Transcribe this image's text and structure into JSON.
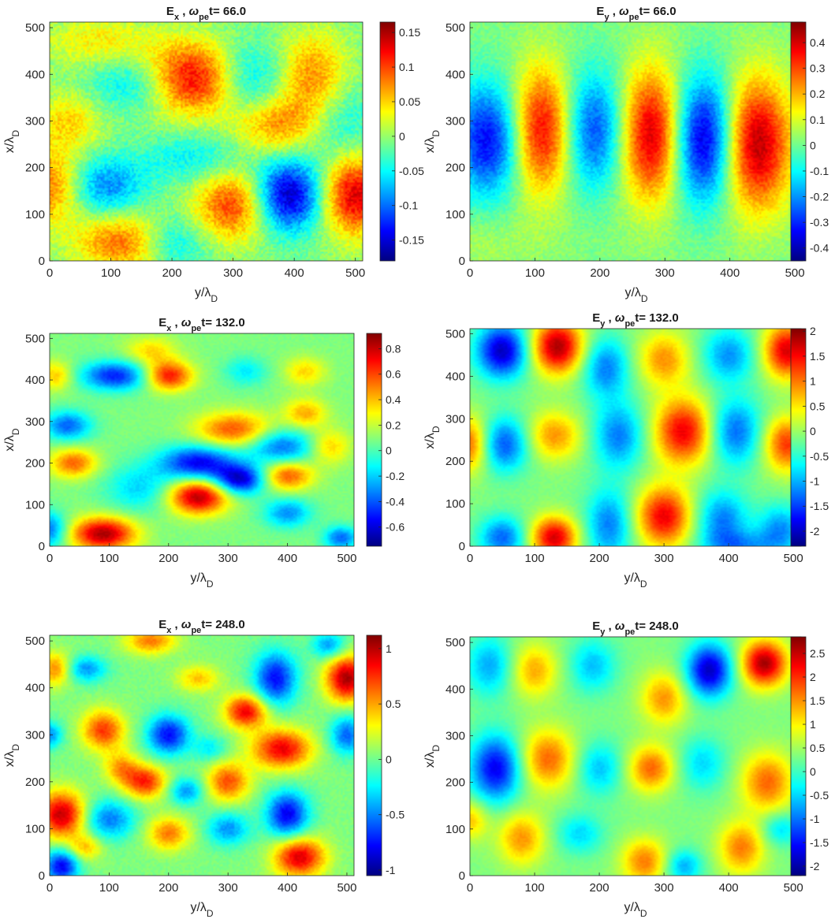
{
  "figure": {
    "colormap": "jet"
  },
  "chart_data": [
    {
      "type": "heatmap",
      "field": "E",
      "field_sub": "x",
      "omega": "ω",
      "omega_sub": "pe",
      "time_label": "t= 66.0",
      "xlabel": "y/λ",
      "xlabel_sub": "D",
      "ylabel": "x/λ",
      "ylabel_sub": "D",
      "xlim": [
        0,
        512
      ],
      "ylim": [
        0,
        512
      ],
      "x_ticks": [
        "0",
        "100",
        "200",
        "300",
        "400",
        "500"
      ],
      "y_ticks": [
        "0",
        "100",
        "200",
        "300",
        "400",
        "500"
      ],
      "clim": [
        -0.18,
        0.165
      ],
      "colorbar_ticks": [
        "-0.15",
        "-0.1",
        "-0.05",
        "0",
        "0.05",
        "0.1",
        "0.15"
      ],
      "features": [
        [
          230,
          390,
          60,
          55,
          1
        ],
        [
          150,
          380,
          55,
          45,
          -0.5
        ],
        [
          390,
          140,
          40,
          55,
          -1
        ],
        [
          500,
          140,
          40,
          60,
          0.9
        ],
        [
          300,
          120,
          45,
          55,
          0.7
        ],
        [
          120,
          40,
          55,
          45,
          0.6
        ],
        [
          0,
          160,
          40,
          55,
          0.6
        ],
        [
          90,
          160,
          45,
          45,
          -0.55
        ],
        [
          320,
          390,
          45,
          55,
          -0.5
        ],
        [
          430,
          390,
          40,
          70,
          0.55
        ],
        [
          370,
          290,
          50,
          45,
          0.5
        ],
        [
          240,
          220,
          60,
          40,
          -0.3
        ],
        [
          200,
          40,
          40,
          40,
          -0.4
        ],
        [
          30,
          300,
          40,
          45,
          0.35
        ],
        [
          470,
          300,
          45,
          60,
          -0.3
        ],
        [
          80,
          470,
          60,
          40,
          0.3
        ]
      ],
      "noise": 0.22
    },
    {
      "type": "heatmap",
      "field": "E",
      "field_sub": "y",
      "omega": "ω",
      "omega_sub": "pe",
      "time_label": "t= 66.0",
      "xlabel": "y/λ",
      "xlabel_sub": "D",
      "ylabel": "x/λ",
      "ylabel_sub": "D",
      "xlim": [
        0,
        512
      ],
      "ylim": [
        0,
        512
      ],
      "x_ticks": [
        "0",
        "100",
        "200",
        "300",
        "400",
        "500"
      ],
      "y_ticks": [
        "0",
        "100",
        "200",
        "300",
        "400",
        "500"
      ],
      "clim": [
        -0.45,
        0.48
      ],
      "colorbar_ticks": [
        "-0.4",
        "-0.3",
        "-0.2",
        "-0.1",
        "0",
        "0.1",
        "0.2",
        "0.3",
        "0.4"
      ],
      "features": [
        [
          30,
          260,
          38,
          85,
          -0.85
        ],
        [
          110,
          280,
          35,
          95,
          0.9
        ],
        [
          190,
          280,
          35,
          90,
          -0.7
        ],
        [
          280,
          270,
          35,
          100,
          0.95
        ],
        [
          360,
          260,
          35,
          95,
          -1
        ],
        [
          440,
          250,
          38,
          100,
          1
        ],
        [
          0,
          40,
          80,
          40,
          0.1
        ]
      ],
      "noise": 0.15
    },
    {
      "type": "heatmap",
      "field": "E",
      "field_sub": "x",
      "omega": "ω",
      "omega_sub": "pe",
      "time_label": "t= 132.0",
      "xlabel": "y/λ",
      "xlabel_sub": "D",
      "ylabel": "x/λ",
      "ylabel_sub": "D",
      "xlim": [
        0,
        512
      ],
      "ylim": [
        0,
        512
      ],
      "x_ticks": [
        "0",
        "100",
        "200",
        "300",
        "400",
        "500"
      ],
      "y_ticks": [
        "0",
        "100",
        "200",
        "300",
        "400",
        "500"
      ],
      "clim": [
        -0.75,
        0.92
      ],
      "colorbar_ticks": [
        "-0.6",
        "-0.4",
        "-0.2",
        "0",
        "0.2",
        "0.4",
        "0.6",
        "0.8"
      ],
      "features": [
        [
          90,
          30,
          38,
          28,
          1
        ],
        [
          250,
          120,
          35,
          30,
          1
        ],
        [
          320,
          160,
          30,
          25,
          -0.9
        ],
        [
          250,
          200,
          45,
          30,
          -0.85
        ],
        [
          110,
          410,
          40,
          25,
          -0.75
        ],
        [
          200,
          410,
          28,
          25,
          0.8
        ],
        [
          30,
          290,
          28,
          25,
          -0.6
        ],
        [
          40,
          200,
          28,
          25,
          0.6
        ],
        [
          310,
          280,
          45,
          30,
          0.65
        ],
        [
          390,
          240,
          40,
          30,
          -0.6
        ],
        [
          400,
          170,
          30,
          25,
          0.65
        ],
        [
          400,
          80,
          28,
          25,
          -0.5
        ],
        [
          10,
          410,
          20,
          25,
          0.4
        ],
        [
          430,
          320,
          25,
          25,
          0.45
        ],
        [
          170,
          470,
          30,
          25,
          0.35
        ],
        [
          470,
          240,
          25,
          30,
          0.4
        ],
        [
          150,
          140,
          40,
          40,
          -0.35
        ],
        [
          430,
          420,
          25,
          25,
          0.35
        ],
        [
          330,
          420,
          25,
          25,
          -0.3
        ],
        [
          0,
          40,
          20,
          30,
          -0.6
        ],
        [
          490,
          20,
          20,
          20,
          -0.6
        ]
      ],
      "noise": 0.07
    },
    {
      "type": "heatmap",
      "field": "E",
      "field_sub": "y",
      "omega": "ω",
      "omega_sub": "pe",
      "time_label": "t= 132.0",
      "xlabel": "y/λ",
      "xlabel_sub": "D",
      "ylabel": "x/λ",
      "ylabel_sub": "D",
      "xlim": [
        0,
        512
      ],
      "ylim": [
        0,
        512
      ],
      "x_ticks": [
        "0",
        "100",
        "200",
        "300",
        "400",
        "500"
      ],
      "y_ticks": [
        "0",
        "100",
        "200",
        "300",
        "400",
        "500"
      ],
      "clim": [
        -2.3,
        2.05
      ],
      "colorbar_ticks": [
        "-2",
        "-1.5",
        "-1",
        "-0.5",
        "0",
        "0.5",
        "1",
        "1.5",
        "2"
      ],
      "features": [
        [
          50,
          460,
          28,
          45,
          -0.95
        ],
        [
          135,
          470,
          28,
          45,
          1
        ],
        [
          50,
          240,
          28,
          45,
          -0.7
        ],
        [
          0,
          240,
          25,
          45,
          0.7
        ],
        [
          130,
          260,
          30,
          40,
          0.5
        ],
        [
          50,
          20,
          25,
          35,
          -0.6
        ],
        [
          130,
          20,
          25,
          35,
          0.9
        ],
        [
          215,
          50,
          25,
          60,
          -0.55
        ],
        [
          230,
          260,
          28,
          55,
          -0.55
        ],
        [
          210,
          420,
          25,
          50,
          -0.55
        ],
        [
          300,
          70,
          30,
          50,
          0.85
        ],
        [
          330,
          270,
          32,
          55,
          0.85
        ],
        [
          300,
          440,
          28,
          45,
          0.5
        ],
        [
          390,
          60,
          28,
          50,
          -0.55
        ],
        [
          410,
          270,
          28,
          55,
          -0.6
        ],
        [
          400,
          450,
          28,
          45,
          -0.5
        ],
        [
          490,
          460,
          25,
          45,
          0.9
        ],
        [
          490,
          240,
          25,
          45,
          0.7
        ],
        [
          480,
          40,
          25,
          40,
          -0.5
        ],
        [
          420,
          0,
          40,
          25,
          -0.4
        ]
      ],
      "noise": 0.06
    },
    {
      "type": "heatmap",
      "field": "E",
      "field_sub": "x",
      "omega": "ω",
      "omega_sub": "pe",
      "time_label": "t= 248.0",
      "xlabel": "y/λ",
      "xlabel_sub": "D",
      "ylabel": "x/λ",
      "ylabel_sub": "D",
      "xlim": [
        0,
        512
      ],
      "ylim": [
        0,
        512
      ],
      "x_ticks": [
        "0",
        "100",
        "200",
        "300",
        "400",
        "500"
      ],
      "y_ticks": [
        "0",
        "100",
        "200",
        "300",
        "400",
        "500"
      ],
      "clim": [
        -1.05,
        1.12
      ],
      "colorbar_ticks": [
        "-1",
        "-0.5",
        "0",
        "0.5",
        "1"
      ],
      "features": [
        [
          20,
          130,
          28,
          35,
          0.95
        ],
        [
          90,
          310,
          25,
          30,
          0.7
        ],
        [
          160,
          200,
          25,
          25,
          0.75
        ],
        [
          330,
          350,
          25,
          25,
          0.85
        ],
        [
          420,
          40,
          30,
          30,
          0.9
        ],
        [
          500,
          420,
          25,
          35,
          1
        ],
        [
          390,
          270,
          35,
          30,
          0.85
        ],
        [
          300,
          200,
          25,
          30,
          0.65
        ],
        [
          200,
          90,
          25,
          25,
          0.55
        ],
        [
          170,
          500,
          30,
          20,
          0.55
        ],
        [
          10,
          440,
          20,
          25,
          0.55
        ],
        [
          20,
          20,
          20,
          25,
          -0.85
        ],
        [
          400,
          130,
          25,
          35,
          -0.85
        ],
        [
          380,
          420,
          25,
          40,
          -0.8
        ],
        [
          200,
          300,
          25,
          30,
          -0.8
        ],
        [
          100,
          120,
          30,
          30,
          -0.55
        ],
        [
          230,
          180,
          20,
          20,
          -0.5
        ],
        [
          300,
          100,
          25,
          25,
          -0.5
        ],
        [
          500,
          300,
          20,
          30,
          -0.6
        ],
        [
          470,
          490,
          20,
          20,
          -0.5
        ],
        [
          60,
          440,
          25,
          20,
          -0.5
        ],
        [
          120,
          230,
          20,
          25,
          0.45
        ],
        [
          60,
          60,
          20,
          20,
          0.4
        ],
        [
          250,
          420,
          25,
          20,
          0.4
        ],
        [
          0,
          300,
          15,
          20,
          -0.5
        ],
        [
          270,
          270,
          20,
          20,
          -0.3
        ]
      ],
      "noise": 0.09
    },
    {
      "type": "heatmap",
      "field": "E",
      "field_sub": "y",
      "omega": "ω",
      "omega_sub": "pe",
      "time_label": "t= 248.0",
      "xlabel": "y/λ",
      "xlabel_sub": "D",
      "ylabel": "x/λ",
      "ylabel_sub": "D",
      "xlim": [
        0,
        512
      ],
      "ylim": [
        0,
        512
      ],
      "x_ticks": [
        "0",
        "100",
        "200",
        "300",
        "400",
        "500"
      ],
      "y_ticks": [
        "0",
        "100",
        "200",
        "300",
        "400",
        "500"
      ],
      "clim": [
        -2.2,
        2.85
      ],
      "colorbar_ticks": [
        "-2",
        "-1.5",
        "-1",
        "-0.5",
        "0",
        "0.5",
        "1",
        "1.5",
        "2",
        "2.5"
      ],
      "features": [
        [
          455,
          455,
          25,
          35,
          1
        ],
        [
          370,
          440,
          25,
          40,
          -0.95
        ],
        [
          40,
          230,
          28,
          50,
          -0.85
        ],
        [
          120,
          250,
          30,
          45,
          0.6
        ],
        [
          280,
          230,
          25,
          35,
          0.6
        ],
        [
          460,
          200,
          28,
          45,
          0.6
        ],
        [
          300,
          380,
          25,
          40,
          0.5
        ],
        [
          100,
          440,
          25,
          40,
          0.45
        ],
        [
          190,
          450,
          25,
          40,
          -0.4
        ],
        [
          200,
          230,
          25,
          40,
          -0.4
        ],
        [
          30,
          450,
          25,
          45,
          -0.45
        ],
        [
          80,
          80,
          25,
          40,
          0.5
        ],
        [
          170,
          90,
          25,
          30,
          -0.35
        ],
        [
          270,
          30,
          25,
          35,
          0.55
        ],
        [
          330,
          20,
          20,
          25,
          -0.45
        ],
        [
          420,
          60,
          25,
          40,
          0.55
        ],
        [
          360,
          240,
          25,
          40,
          -0.35
        ],
        [
          480,
          100,
          20,
          25,
          -0.35
        ],
        [
          0,
          120,
          20,
          30,
          0.4
        ]
      ],
      "noise": 0.05
    }
  ]
}
